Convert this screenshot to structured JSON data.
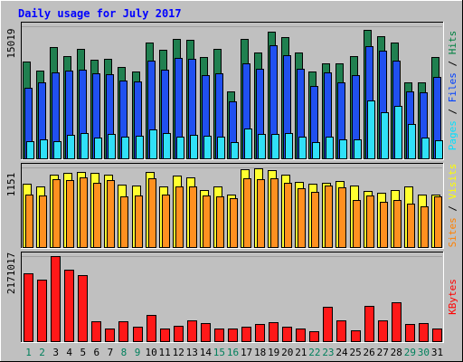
{
  "chart_data": {
    "type": "bar",
    "title": "Daily usage for July 2017",
    "days": [
      "1",
      "2",
      "3",
      "4",
      "5",
      "6",
      "7",
      "8",
      "9",
      "10",
      "11",
      "12",
      "13",
      "14",
      "15",
      "16",
      "17",
      "18",
      "19",
      "20",
      "21",
      "22",
      "23",
      "24",
      "25",
      "26",
      "27",
      "28",
      "29",
      "30",
      "31"
    ],
    "weekend_days": [
      "1",
      "2",
      "8",
      "9",
      "15",
      "16",
      "22",
      "23",
      "29",
      "30"
    ],
    "panels": [
      {
        "id": "hits",
        "ymax_label": "15019",
        "ymax": 15019,
        "legend": [
          "Pages",
          "Files",
          "Hits"
        ],
        "legend_colors": [
          "#00e0ff",
          "#0040ff",
          "#008040"
        ],
        "series": [
          {
            "name": "Hits",
            "color": "#208050",
            "values": [
              10980,
              9990,
              12700,
              11600,
              12460,
              11230,
              11310,
              10410,
              9830,
              13190,
              12350,
              13570,
              13470,
              11500,
              12490,
              7640,
              13530,
              12020,
              14400,
              13820,
              12000,
              9830,
              10800,
              10830,
              11590,
              14560,
              13870,
              13180,
              8630,
              8620,
              11480
            ]
          },
          {
            "name": "Files",
            "color": "#2050f0",
            "values": [
              7990,
              8680,
              9740,
              9990,
              10050,
              9620,
              9520,
              8840,
              8740,
              11150,
              10080,
              11460,
              11300,
              9470,
              9690,
              6490,
              10810,
              10180,
              12840,
              11730,
              10210,
              8280,
              9760,
              8690,
              9510,
              12770,
              12200,
              11140,
              7600,
              7480,
              9220
            ]
          },
          {
            "name": "Pages",
            "color": "#30e0f8",
            "values": [
              1910,
              2150,
              1980,
              2630,
              2900,
              2380,
              2740,
              2520,
              2620,
              3260,
              2910,
              2480,
              2720,
              2560,
              2520,
              1830,
              3380,
              2750,
              2730,
              2870,
              2510,
              1890,
              2510,
              2170,
              2200,
              6570,
              5270,
              6000,
              3960,
              2360,
              2050
            ]
          }
        ]
      },
      {
        "id": "visits",
        "ymax_label": "1151",
        "ymax": 1151,
        "legend": [
          "Sites",
          "Visits"
        ],
        "legend_colors": [
          "#ff8000",
          "#ffff00"
        ],
        "series": [
          {
            "name": "Visits",
            "color": "#ffff30",
            "values": [
              910,
              880,
              1040,
              1070,
              1090,
              1070,
              1040,
              900,
              890,
              1080,
              880,
              1030,
              1010,
              820,
              880,
              760,
              1130,
              1140,
              1110,
              1040,
              940,
              920,
              930,
              950,
              890,
              810,
              780,
              820,
              870,
              760,
              760
            ]
          },
          {
            "name": "Sites",
            "color": "#ff9020",
            "values": [
              760,
              740,
              980,
              970,
              1010,
              930,
              970,
              730,
              750,
              1000,
              760,
              870,
              880,
              740,
              730,
              710,
              1000,
              980,
              990,
              930,
              850,
              800,
              890,
              860,
              680,
              740,
              650,
              680,
              630,
              590,
              730
            ]
          }
        ]
      },
      {
        "id": "kbytes",
        "ymax_label": "2171017",
        "ymax": 2171017,
        "legend": [
          "KBytes"
        ],
        "legend_colors": [
          "#ff0000"
        ],
        "series": [
          {
            "name": "KBytes",
            "color": "#ff1818",
            "values": [
              1730000,
              1580000,
              2171017,
              1820000,
              1680000,
              500000,
              330000,
              510000,
              360000,
              680000,
              330000,
              400000,
              540000,
              460000,
              330000,
              330000,
              370000,
              450000,
              480000,
              370000,
              330000,
              260000,
              870000,
              540000,
              270000,
              910000,
              540000,
              990000,
              440000,
              460000,
              330000
            ]
          }
        ]
      }
    ]
  }
}
